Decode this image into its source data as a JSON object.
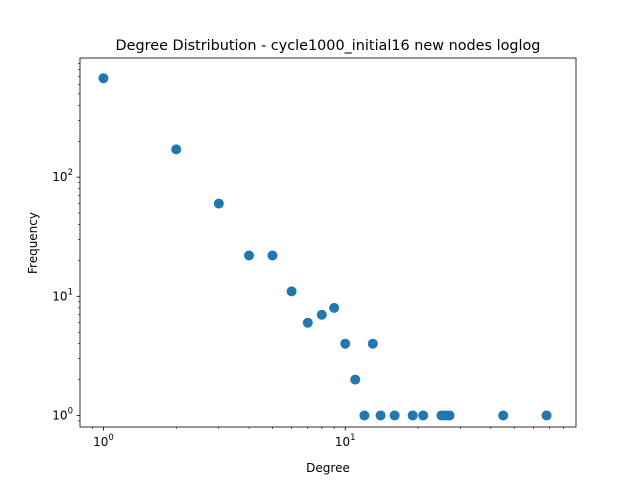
{
  "chart_data": {
    "type": "scatter",
    "title": "Degree Distribution - cycle1000_initial16 new nodes loglog",
    "xlabel": "Degree",
    "ylabel": "Frequency",
    "xscale": "log",
    "yscale": "log",
    "xlim": [
      0.8,
      90
    ],
    "ylim": [
      0.8,
      1000
    ],
    "grid": false,
    "marker_color": "#1f77b4",
    "x_ticks": [
      {
        "value": 1,
        "base": "10",
        "exp": "0"
      },
      {
        "value": 10,
        "base": "10",
        "exp": "1"
      }
    ],
    "y_ticks": [
      {
        "value": 1,
        "base": "10",
        "exp": "0"
      },
      {
        "value": 10,
        "base": "10",
        "exp": "1"
      },
      {
        "value": 100,
        "base": "10",
        "exp": "2"
      }
    ],
    "points": [
      {
        "x": 1,
        "y": 676
      },
      {
        "x": 2,
        "y": 171
      },
      {
        "x": 3,
        "y": 60
      },
      {
        "x": 4,
        "y": 22
      },
      {
        "x": 5,
        "y": 22
      },
      {
        "x": 6,
        "y": 11
      },
      {
        "x": 7,
        "y": 6
      },
      {
        "x": 8,
        "y": 7
      },
      {
        "x": 9,
        "y": 8
      },
      {
        "x": 10,
        "y": 4
      },
      {
        "x": 11,
        "y": 2
      },
      {
        "x": 12,
        "y": 1
      },
      {
        "x": 13,
        "y": 4
      },
      {
        "x": 14,
        "y": 1
      },
      {
        "x": 16,
        "y": 1
      },
      {
        "x": 19,
        "y": 1
      },
      {
        "x": 21,
        "y": 1
      },
      {
        "x": 25,
        "y": 1
      },
      {
        "x": 26,
        "y": 1
      },
      {
        "x": 27,
        "y": 1
      },
      {
        "x": 45,
        "y": 1
      },
      {
        "x": 68,
        "y": 1
      }
    ]
  }
}
